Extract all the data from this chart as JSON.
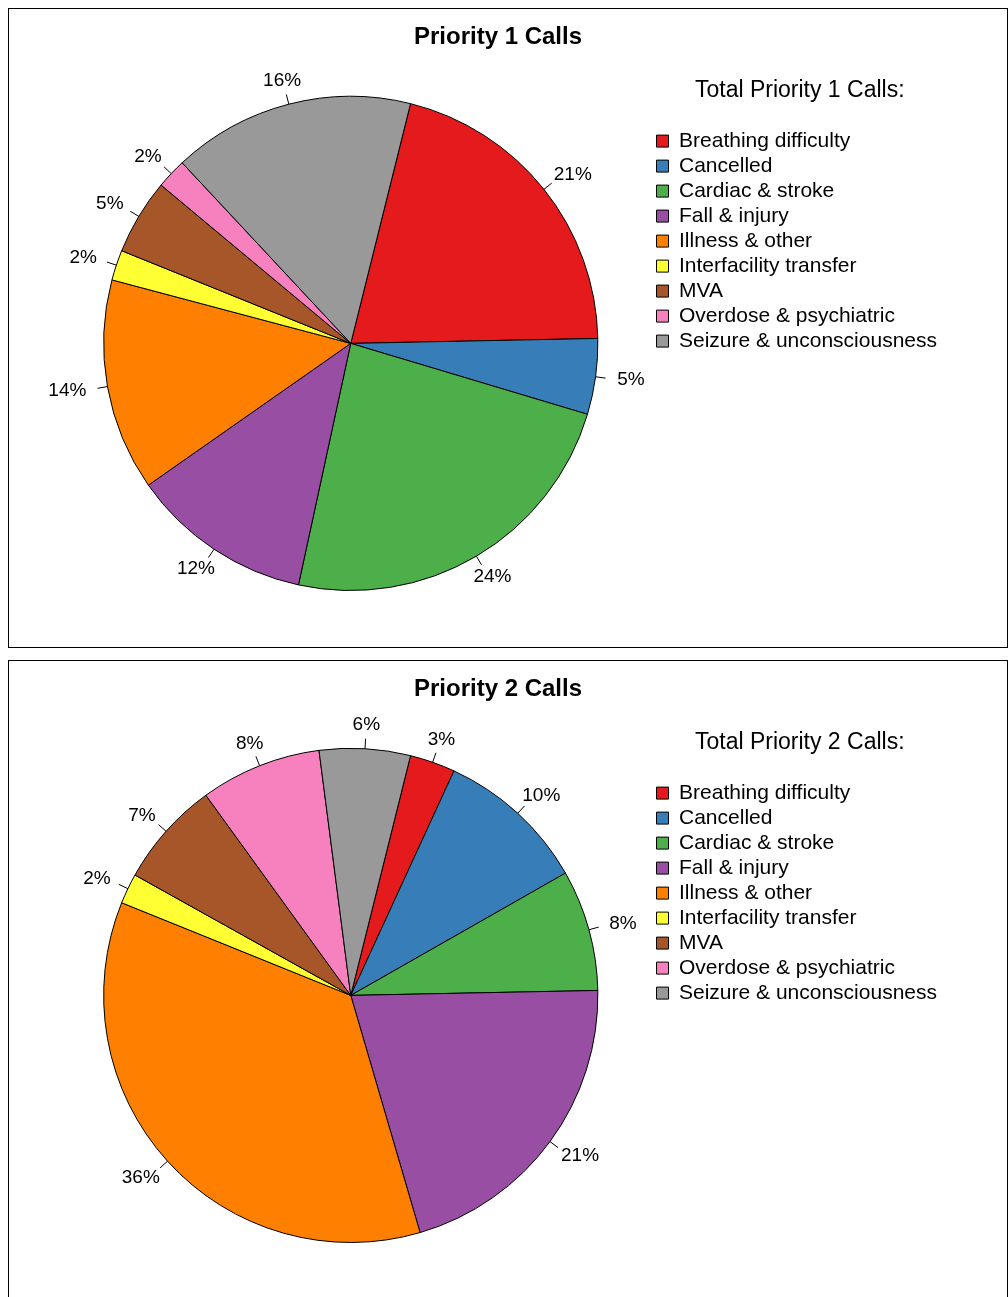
{
  "chart_data": [
    {
      "type": "pie",
      "title": "Priority 1 Calls",
      "legend_title": "Total Priority 1 Calls:",
      "legend": "top right",
      "categories": [
        "Breathing difficulty",
        "Cancelled",
        "Cardiac & stroke",
        "Fall & injury",
        "Illness & other",
        "Interfacility transfer",
        "MVA",
        "Overdose & psychiatric",
        "Seizure & unconsciousness"
      ],
      "values": [
        21,
        5,
        24,
        12,
        14,
        2,
        5,
        2,
        16
      ],
      "value_labels": [
        "21%",
        "5%",
        "24%",
        "12%",
        "14%",
        "2%",
        "5%",
        "2%",
        "16%"
      ],
      "colors": [
        "#e41a1c",
        "#377eb8",
        "#4daf4a",
        "#984ea3",
        "#ff7f00",
        "#ffff33",
        "#a65628",
        "#f781bf",
        "#999999"
      ]
    },
    {
      "type": "pie",
      "title": "Priority 2 Calls",
      "legend_title": "Total Priority 2 Calls:",
      "legend": "top right",
      "categories": [
        "Breathing difficulty",
        "Cancelled",
        "Cardiac & stroke",
        "Fall & injury",
        "Illness & other",
        "Interfacility transfer",
        "MVA",
        "Overdose & psychiatric",
        "Seizure & unconsciousness"
      ],
      "values": [
        3,
        10,
        8,
        21,
        36,
        2,
        7,
        8,
        6
      ],
      "value_labels": [
        "3%",
        "10%",
        "8%",
        "21%",
        "36%",
        "2%",
        "7%",
        "8%",
        "6%"
      ],
      "colors": [
        "#e41a1c",
        "#377eb8",
        "#4daf4a",
        "#984ea3",
        "#ff7f00",
        "#ffff33",
        "#a65628",
        "#f781bf",
        "#999999"
      ]
    }
  ]
}
